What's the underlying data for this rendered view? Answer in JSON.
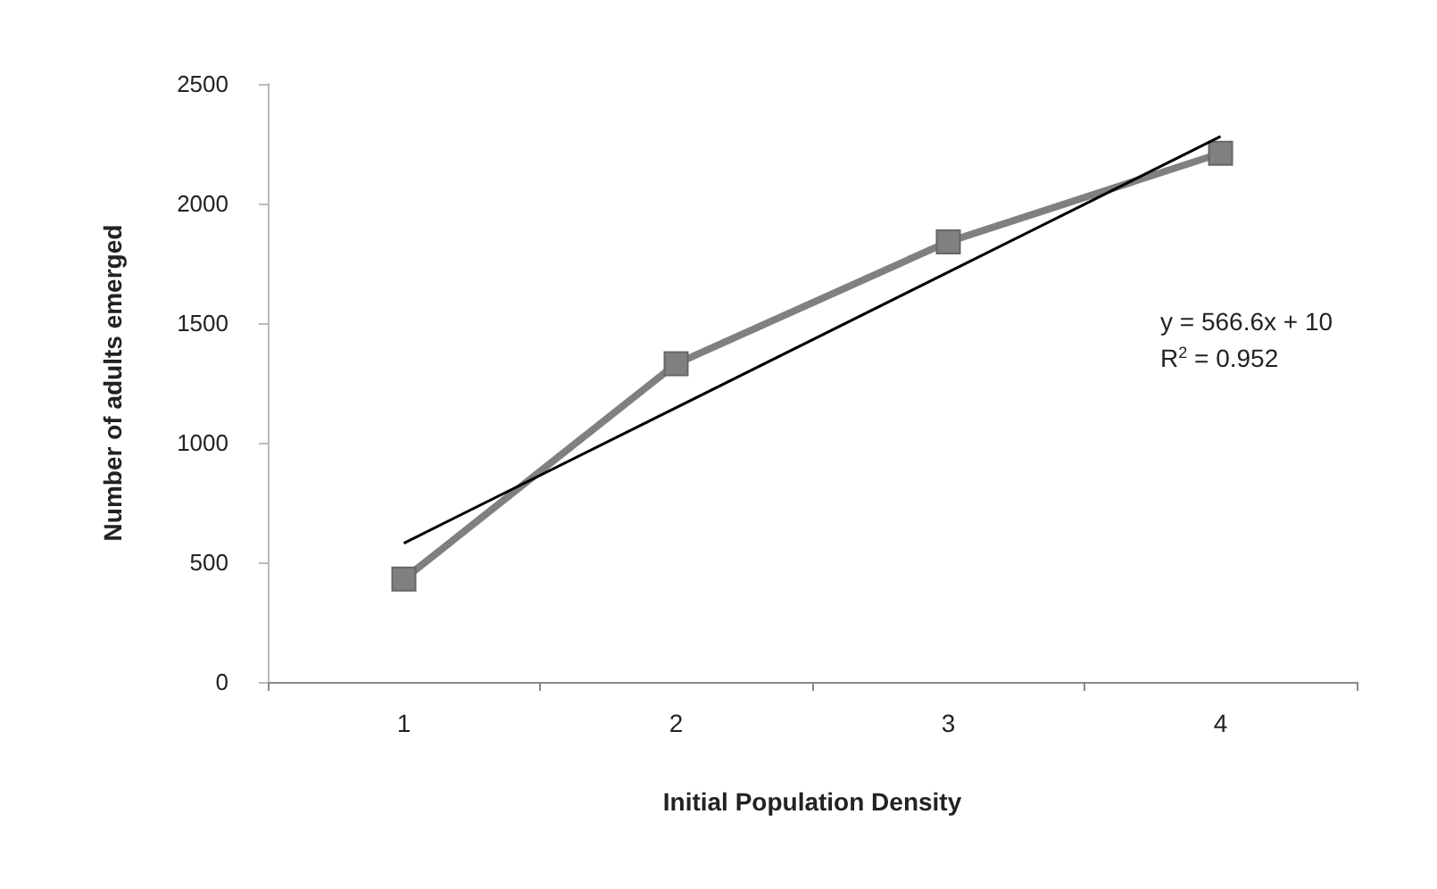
{
  "chart_data": {
    "type": "line",
    "xlabel": "Initial Population Density",
    "ylabel": "Number of adults emerged",
    "categories": [
      "1",
      "2",
      "3",
      "4"
    ],
    "series": [
      {
        "color": "#808080",
        "values": [
          430,
          1330,
          1840,
          2210
        ],
        "marker": "square"
      },
      {
        "color": "#000000",
        "x": [
          "1",
          "4"
        ],
        "values": [
          580,
          2280
        ],
        "marker": "none"
      }
    ],
    "ylim": [
      0,
      2500
    ],
    "yticks": [
      0,
      500,
      1000,
      1500,
      2000,
      2500
    ],
    "grid": false,
    "annotations": [
      "y = 566.6x + 10",
      "R$^{2}$ = 0.952"
    ]
  }
}
